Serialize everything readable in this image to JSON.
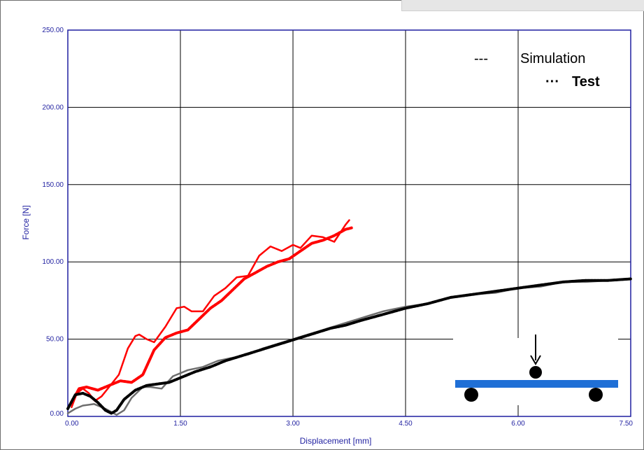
{
  "chart_data": {
    "type": "line",
    "xlabel": "Displacement [mm]",
    "ylabel": "Force [N]",
    "xlim": [
      0,
      7.5
    ],
    "ylim": [
      0,
      250
    ],
    "x_ticks": [
      "0.00",
      "1.50",
      "3.00",
      "4.50",
      "6.00",
      "7.50"
    ],
    "y_ticks": [
      "0.00",
      "50.00",
      "100.00",
      "150.00",
      "200.00",
      "250.00"
    ],
    "grid": true,
    "legend": {
      "position": "top-right",
      "entries": [
        {
          "marker": "---",
          "label": "Simulation",
          "style": "solid"
        },
        {
          "marker": "···",
          "label": "Test",
          "style": "dotted"
        }
      ]
    },
    "series": [
      {
        "color": "#ff0000",
        "style": "solid",
        "x": [
          0.05,
          0.12,
          0.2,
          0.28,
          0.36,
          0.45,
          0.55,
          0.68,
          0.8,
          0.9,
          0.95,
          1.05,
          1.15,
          1.3,
          1.45,
          1.55,
          1.65,
          1.8,
          1.95,
          2.1,
          2.25,
          2.4,
          2.55,
          2.7,
          2.85,
          3.0,
          3.1,
          3.25,
          3.4,
          3.55,
          3.7,
          3.75
        ],
        "y": [
          6,
          15,
          18,
          15,
          10,
          13,
          19,
          27,
          44,
          52,
          53,
          50,
          48,
          58,
          70,
          71,
          68,
          68,
          78,
          83,
          90,
          91,
          104,
          110,
          107,
          111,
          109,
          117,
          116,
          113,
          124,
          127
        ]
      },
      {
        "color": "#ff0000",
        "style": "dotted",
        "x": [
          0.05,
          0.15,
          0.25,
          0.4,
          0.55,
          0.7,
          0.85,
          1.0,
          1.15,
          1.3,
          1.45,
          1.6,
          1.75,
          1.9,
          2.05,
          2.2,
          2.35,
          2.5,
          2.65,
          2.8,
          2.95,
          3.1,
          3.25,
          3.4,
          3.55,
          3.7,
          3.78
        ],
        "y": [
          9,
          18,
          19,
          17,
          20,
          23,
          22,
          27,
          43,
          51,
          54,
          56,
          63,
          70,
          75,
          82,
          89,
          93,
          97,
          100,
          102,
          107,
          112,
          114,
          117,
          121,
          122
        ]
      },
      {
        "color": "#6e6e6e",
        "style": "solid",
        "x": [
          0,
          0.1,
          0.2,
          0.35,
          0.5,
          0.65,
          0.75,
          0.85,
          1.0,
          1.1,
          1.25,
          1.4,
          1.6,
          1.8,
          2.0,
          2.2,
          2.4,
          2.6,
          2.8,
          3.0,
          3.2,
          3.4,
          3.6,
          3.8,
          4.0,
          4.2,
          4.5,
          4.8,
          5.1,
          5.4,
          5.7,
          6.0,
          6.3,
          6.6,
          6.9,
          7.2,
          7.5
        ],
        "y": [
          2,
          5,
          7,
          8,
          5,
          1,
          4,
          12,
          19,
          19,
          18,
          26,
          30,
          32,
          36,
          38,
          40,
          44,
          47,
          50,
          53,
          56,
          59,
          62,
          65,
          68,
          71,
          73,
          77,
          79,
          80,
          83,
          84,
          87,
          87,
          88,
          89
        ]
      },
      {
        "color": "#000000",
        "style": "dotted",
        "x": [
          0,
          0.1,
          0.2,
          0.3,
          0.4,
          0.5,
          0.58,
          0.65,
          0.75,
          0.9,
          1.05,
          1.2,
          1.35,
          1.5,
          1.7,
          1.9,
          2.1,
          2.3,
          2.5,
          2.7,
          2.9,
          3.1,
          3.3,
          3.5,
          3.7,
          3.9,
          4.2,
          4.5,
          4.8,
          5.1,
          5.4,
          5.7,
          6.0,
          6.3,
          6.6,
          6.9,
          7.2,
          7.5
        ],
        "y": [
          5,
          14,
          15,
          13,
          9,
          4,
          2,
          4,
          11,
          17,
          20,
          21,
          22,
          25,
          29,
          32,
          36,
          39,
          42,
          45,
          48,
          51,
          54,
          57,
          59,
          62,
          66,
          70,
          73,
          77,
          79,
          81,
          83,
          85,
          87,
          88,
          88,
          89
        ]
      }
    ]
  }
}
